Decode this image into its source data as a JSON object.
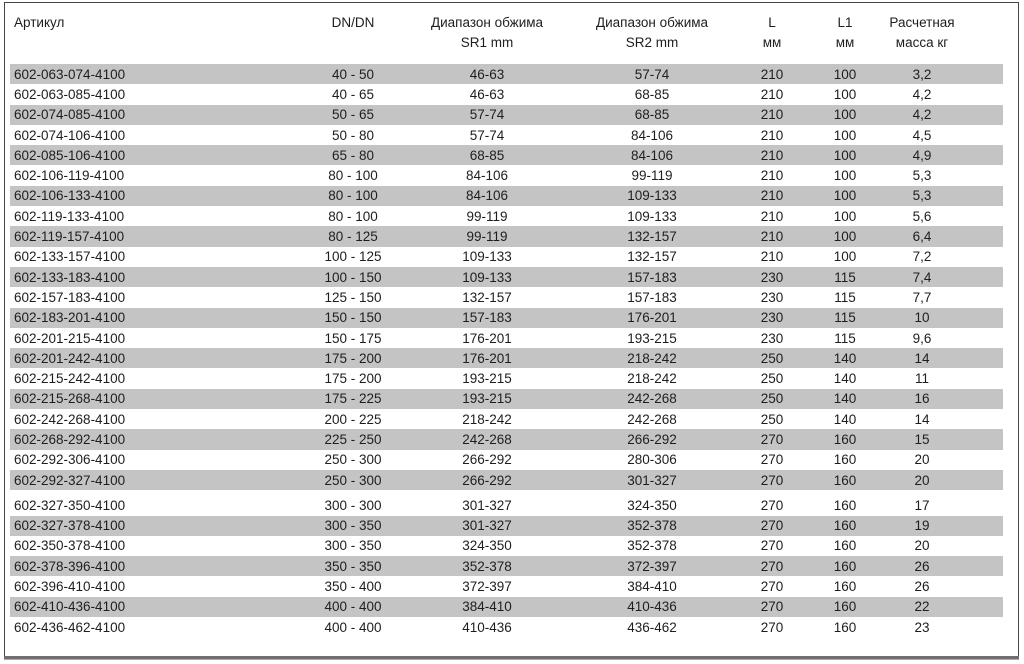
{
  "table": {
    "columns": [
      {
        "line1": "Артикул",
        "line2": ""
      },
      {
        "line1": "DN/DN",
        "line2": ""
      },
      {
        "line1": "Диапазон обжима",
        "line2": "SR1 mm"
      },
      {
        "line1": "Диапазон обжима",
        "line2": "SR2 mm"
      },
      {
        "line1": "L",
        "line2": "мм"
      },
      {
        "line1": "L1",
        "line2": "мм"
      },
      {
        "line1": "Расчетная",
        "line2": "масса кг"
      }
    ],
    "column_keys": [
      "article",
      "dn",
      "sr1",
      "sr2",
      "l",
      "l1",
      "mass"
    ],
    "group_break_before_index": 21,
    "rows": [
      [
        "602-063-074-4100",
        "40 - 50",
        "46-63",
        "57-74",
        "210",
        "100",
        "3,2"
      ],
      [
        "602-063-085-4100",
        "40 - 65",
        "46-63",
        "68-85",
        "210",
        "100",
        "4,2"
      ],
      [
        "602-074-085-4100",
        "50 - 65",
        "57-74",
        "68-85",
        "210",
        "100",
        "4,2"
      ],
      [
        "602-074-106-4100",
        "50 - 80",
        "57-74",
        "84-106",
        "210",
        "100",
        "4,5"
      ],
      [
        "602-085-106-4100",
        "65 - 80",
        "68-85",
        "84-106",
        "210",
        "100",
        "4,9"
      ],
      [
        "602-106-119-4100",
        "80 - 100",
        "84-106",
        "99-119",
        "210",
        "100",
        "5,3"
      ],
      [
        "602-106-133-4100",
        "80 - 100",
        "84-106",
        "109-133",
        "210",
        "100",
        "5,3"
      ],
      [
        "602-119-133-4100",
        "80 - 100",
        "99-119",
        "109-133",
        "210",
        "100",
        "5,6"
      ],
      [
        "602-119-157-4100",
        "80 - 125",
        "99-119",
        "132-157",
        "210",
        "100",
        "6,4"
      ],
      [
        "602-133-157-4100",
        "100 - 125",
        "109-133",
        "132-157",
        "210",
        "100",
        "7,2"
      ],
      [
        "602-133-183-4100",
        "100 - 150",
        "109-133",
        "157-183",
        "230",
        "115",
        "7,4"
      ],
      [
        "602-157-183-4100",
        "125 - 150",
        "132-157",
        "157-183",
        "230",
        "115",
        "7,7"
      ],
      [
        "602-183-201-4100",
        "150 - 150",
        "157-183",
        "176-201",
        "230",
        "115",
        "10"
      ],
      [
        "602-201-215-4100",
        "150 - 175",
        "176-201",
        "193-215",
        "230",
        "115",
        "9,6"
      ],
      [
        "602-201-242-4100",
        "175 - 200",
        "176-201",
        "218-242",
        "250",
        "140",
        "14"
      ],
      [
        "602-215-242-4100",
        "175 - 200",
        "193-215",
        "218-242",
        "250",
        "140",
        "11"
      ],
      [
        "602-215-268-4100",
        "175 - 225",
        "193-215",
        "242-268",
        "250",
        "140",
        "16"
      ],
      [
        "602-242-268-4100",
        "200 - 225",
        "218-242",
        "242-268",
        "250",
        "140",
        "14"
      ],
      [
        "602-268-292-4100",
        "225 - 250",
        "242-268",
        "266-292",
        "270",
        "160",
        "15"
      ],
      [
        "602-292-306-4100",
        "250 - 300",
        "266-292",
        "280-306",
        "270",
        "160",
        "20"
      ],
      [
        "602-292-327-4100",
        "250 - 300",
        "266-292",
        "301-327",
        "270",
        "160",
        "20"
      ],
      [
        "602-327-350-4100",
        "300 - 300",
        "301-327",
        "324-350",
        "270",
        "160",
        "17"
      ],
      [
        "602-327-378-4100",
        "300 - 350",
        "301-327",
        "352-378",
        "270",
        "160",
        "19"
      ],
      [
        "602-350-378-4100",
        "300 - 350",
        "324-350",
        "352-378",
        "270",
        "160",
        "20"
      ],
      [
        "602-378-396-4100",
        "350 - 350",
        "352-378",
        "372-397",
        "270",
        "160",
        "26"
      ],
      [
        "602-396-410-4100",
        "350 - 400",
        "372-397",
        "384-410",
        "270",
        "160",
        "26"
      ],
      [
        "602-410-436-4100",
        "400 - 400",
        "384-410",
        "410-436",
        "270",
        "160",
        "22"
      ],
      [
        "602-436-462-4100",
        "400 - 400",
        "410-436",
        "436-462",
        "270",
        "160",
        "23"
      ]
    ]
  },
  "colors": {
    "row_stripe": "#c4c4c4",
    "frame_border": "#454545",
    "bottom_bar": "#6f6f6f",
    "text": "#1e1e1e"
  }
}
